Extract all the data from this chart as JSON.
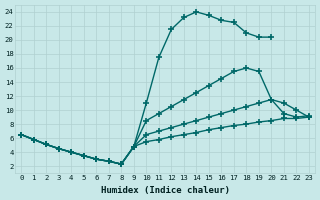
{
  "bg_color": "#c8e8e8",
  "grid_color": "#b0d0d0",
  "line_color": "#006868",
  "marker": "+",
  "markersize": 5,
  "markeredgewidth": 1.2,
  "linewidth": 1.0,
  "xlabel": "Humidex (Indice chaleur)",
  "xlim": [
    -0.5,
    23.5
  ],
  "ylim": [
    1,
    25
  ],
  "xticks": [
    0,
    1,
    2,
    3,
    4,
    5,
    6,
    7,
    8,
    9,
    10,
    11,
    12,
    13,
    14,
    15,
    16,
    17,
    18,
    19,
    20,
    21,
    22,
    23
  ],
  "yticks": [
    2,
    4,
    6,
    8,
    10,
    12,
    14,
    16,
    18,
    20,
    22,
    24
  ],
  "lines": [
    {
      "x": [
        0,
        1,
        2,
        3,
        4,
        5,
        6,
        7,
        8,
        9,
        10,
        11,
        12,
        13,
        14,
        15,
        16,
        17,
        18,
        19,
        20
      ],
      "y": [
        6.5,
        5.8,
        5.1,
        4.5,
        4.0,
        3.5,
        3.0,
        2.7,
        2.3,
        4.8,
        11.0,
        17.5,
        21.5,
        23.2,
        24.0,
        23.5,
        22.8,
        22.5,
        21.0,
        20.4,
        20.4
      ]
    },
    {
      "x": [
        0,
        1,
        2,
        3,
        4,
        5,
        6,
        7,
        8,
        9,
        10,
        11,
        12,
        13,
        14,
        15,
        16,
        17,
        18,
        19,
        20,
        21,
        22,
        23
      ],
      "y": [
        6.5,
        5.8,
        5.1,
        4.5,
        4.0,
        3.5,
        3.0,
        2.7,
        2.3,
        4.8,
        8.5,
        9.5,
        10.5,
        11.5,
        12.5,
        13.5,
        14.5,
        15.5,
        16.0,
        15.5,
        11.5,
        11.0,
        10.0,
        9.0
      ]
    },
    {
      "x": [
        0,
        1,
        2,
        3,
        4,
        5,
        6,
        7,
        8,
        9,
        10,
        11,
        12,
        13,
        14,
        15,
        16,
        17,
        18,
        19,
        20,
        21,
        22,
        23
      ],
      "y": [
        6.5,
        5.8,
        5.1,
        4.5,
        4.0,
        3.5,
        3.0,
        2.7,
        2.3,
        4.8,
        6.5,
        7.0,
        7.5,
        8.0,
        8.5,
        9.0,
        9.5,
        10.0,
        10.5,
        11.0,
        11.5,
        9.5,
        9.0,
        9.2
      ]
    },
    {
      "x": [
        0,
        1,
        2,
        3,
        4,
        5,
        6,
        7,
        8,
        9,
        10,
        11,
        12,
        13,
        14,
        15,
        16,
        17,
        18,
        19,
        20,
        21,
        22,
        23
      ],
      "y": [
        6.5,
        5.8,
        5.1,
        4.5,
        4.0,
        3.5,
        3.0,
        2.7,
        2.3,
        4.8,
        5.5,
        5.8,
        6.2,
        6.5,
        6.8,
        7.2,
        7.5,
        7.8,
        8.0,
        8.3,
        8.5,
        8.8,
        8.8,
        9.0
      ]
    }
  ]
}
